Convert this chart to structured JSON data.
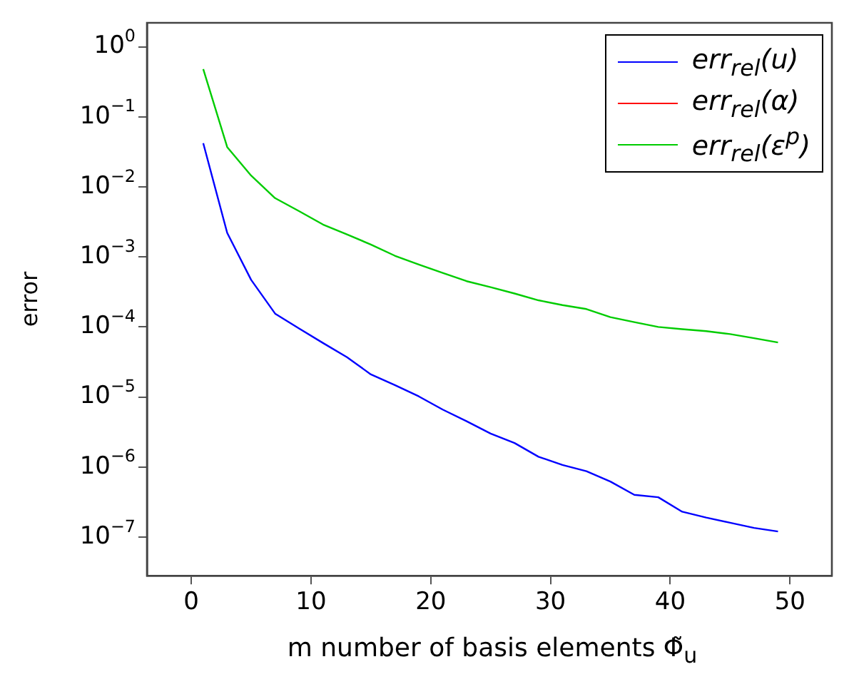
{
  "chart_data": {
    "type": "line",
    "xlabel": "m number of basis elements Φ̃$_{u}$",
    "ylabel": "error",
    "x": [
      1,
      3,
      5,
      7,
      9,
      11,
      13,
      15,
      17,
      19,
      21,
      23,
      25,
      27,
      29,
      31,
      33,
      35,
      37,
      39,
      41,
      43,
      45,
      47,
      49
    ],
    "series": [
      {
        "name": "err$_{rel}$(u)",
        "color": "#0000ff",
        "values": [
          0.042,
          0.0022,
          0.00047,
          0.000155,
          9.5e-05,
          5.9e-05,
          3.7e-05,
          2.1e-05,
          1.48e-05,
          1.02e-05,
          6.6e-06,
          4.5e-06,
          3e-06,
          2.2e-06,
          1.4e-06,
          1.07e-06,
          8.7e-07,
          6.2e-07,
          4e-07,
          3.7e-07,
          2.3e-07,
          1.9e-07,
          1.6e-07,
          1.35e-07,
          1.2e-07
        ]
      },
      {
        "name": "err$_{rel}$(α)",
        "color": "#ff0000",
        "values": [
          null,
          null,
          null,
          null,
          null,
          null,
          null,
          null,
          null,
          null,
          null,
          null,
          null,
          null,
          null,
          null,
          null,
          null,
          null,
          null,
          null,
          null,
          null,
          null,
          null
        ]
      },
      {
        "name": "err$_{rel}$(ε$^{p}$)",
        "color": "#00cc00",
        "values": [
          0.48,
          0.037,
          0.0145,
          0.0069,
          0.0045,
          0.0029,
          0.0021,
          0.0015,
          0.00104,
          0.00078,
          0.00059,
          0.00045,
          0.00037,
          0.0003,
          0.00024,
          0.000205,
          0.00018,
          0.000138,
          0.000117,
          0.0001,
          9.3e-05,
          8.7e-05,
          7.9e-05,
          6.9e-05,
          6e-05
        ]
      }
    ],
    "log": "y",
    "grid": false,
    "legend": "top right",
    "marker": "none",
    "line_style": "solid",
    "xlim": [
      -3.7,
      53.5
    ],
    "xticks": [
      0,
      10,
      20,
      30,
      40,
      50
    ],
    "ylim": [
      2.8e-08,
      2.2
    ],
    "yticks": [
      {
        "value": 1,
        "label": "10$^{0}$"
      },
      {
        "value": 0.1,
        "label": "10$^{−1}$"
      },
      {
        "value": 0.01,
        "label": "10$^{−2}$"
      },
      {
        "value": 0.001,
        "label": "10$^{−3}$"
      },
      {
        "value": 0.0001,
        "label": "10$^{−4}$"
      },
      {
        "value": 1e-05,
        "label": "10$^{−5}$"
      },
      {
        "value": 1e-06,
        "label": "10$^{−6}$"
      },
      {
        "value": 1e-07,
        "label": "10$^{−7}$"
      }
    ]
  }
}
